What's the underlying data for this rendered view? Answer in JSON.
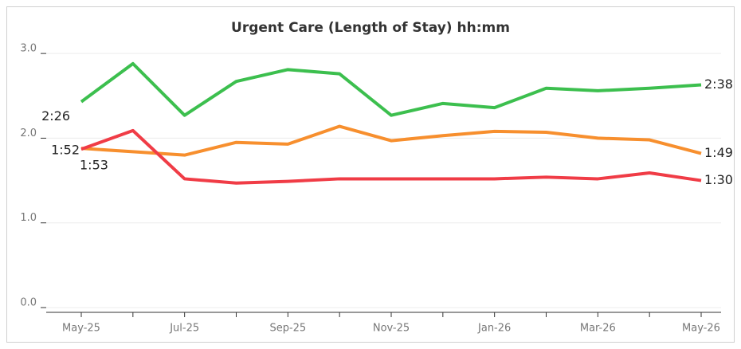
{
  "chart_data": {
    "type": "line",
    "title": "Urgent Care (Length of Stay) hh:mm",
    "categories": [
      "May-25",
      null,
      "Jul-25",
      null,
      "Sep-25",
      null,
      "Nov-25",
      null,
      "Jan-26",
      null,
      "Mar-26",
      null,
      "May-26"
    ],
    "series": [
      {
        "color": "#3cbf4e",
        "values": [
          2.43,
          2.88,
          2.27,
          2.67,
          2.81,
          2.76,
          2.27,
          2.41,
          2.36,
          2.59,
          2.56,
          2.59,
          2.63
        ],
        "value_labels": [
          "2:26",
          null,
          null,
          null,
          null,
          null,
          null,
          null,
          null,
          null,
          null,
          null,
          "2:38"
        ]
      },
      {
        "color": "#f78f2e",
        "values": [
          1.88,
          1.84,
          1.8,
          1.95,
          1.93,
          2.14,
          1.97,
          2.03,
          2.08,
          2.07,
          2.0,
          1.98,
          1.82
        ],
        "value_labels": [
          "1:53",
          null,
          null,
          null,
          null,
          null,
          null,
          null,
          null,
          null,
          null,
          null,
          "1:49"
        ]
      },
      {
        "color": "#f03c46",
        "values": [
          1.87,
          2.09,
          1.52,
          1.47,
          1.49,
          1.52,
          1.52,
          1.52,
          1.52,
          1.54,
          1.52,
          1.59,
          1.5
        ],
        "value_labels": [
          "1:52",
          null,
          null,
          null,
          null,
          null,
          null,
          null,
          null,
          null,
          null,
          null,
          "1:30"
        ]
      }
    ],
    "ylim": [
      0,
      3.1
    ],
    "yticks": [
      {
        "value": 0,
        "label": "0.0"
      },
      {
        "value": 1,
        "label": "1.0"
      },
      {
        "value": 2,
        "label": "2.0"
      },
      {
        "value": 3,
        "label": "3.0"
      }
    ],
    "grid": true
  }
}
